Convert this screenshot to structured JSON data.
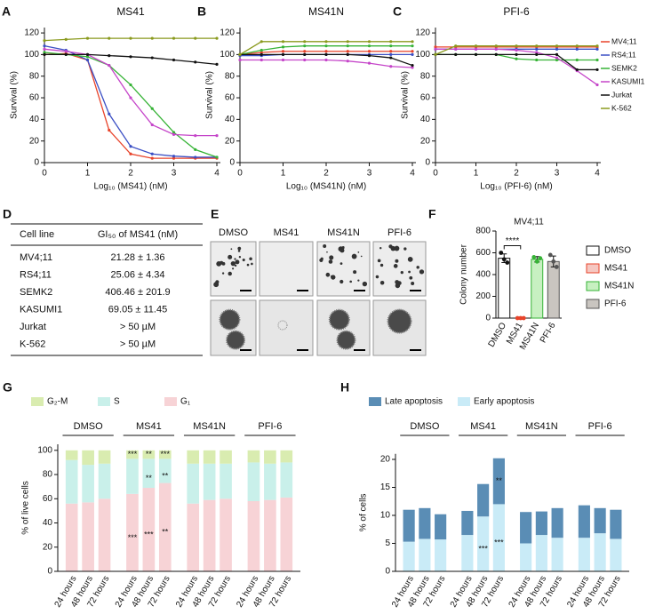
{
  "chart_data": [
    {
      "panel": "A",
      "type": "line",
      "title": "MS41",
      "xlabel": "Log₁₀ (MS41) (nM)",
      "ylabel": "Survival (%)",
      "x": [
        0,
        0.5,
        1,
        1.5,
        2,
        2.5,
        3,
        3.5,
        4
      ],
      "xlim": [
        0,
        4
      ],
      "xticks": [
        0,
        1,
        2,
        3,
        4
      ],
      "ylim": [
        0,
        125
      ],
      "yticks": [
        0,
        20,
        40,
        60,
        80,
        100,
        120
      ],
      "series": [
        {
          "name": "MV4;11",
          "color": "#e8432a",
          "values": [
            100,
            101,
            95,
            30,
            8,
            4,
            4,
            4,
            4
          ]
        },
        {
          "name": "RS4;11",
          "color": "#3b4fc4",
          "values": [
            108,
            104,
            95,
            45,
            15,
            8,
            6,
            5,
            5
          ]
        },
        {
          "name": "SEMK2",
          "color": "#36b336",
          "values": [
            102,
            100,
            98,
            90,
            72,
            50,
            28,
            12,
            5
          ]
        },
        {
          "name": "KASUMI1",
          "color": "#c545c9",
          "values": [
            105,
            103,
            100,
            90,
            60,
            35,
            26,
            25,
            25
          ]
        },
        {
          "name": "Jurkat",
          "color": "#111111",
          "values": [
            100,
            100,
            100,
            99,
            98,
            97,
            95,
            93,
            91
          ]
        },
        {
          "name": "K-562",
          "color": "#8a9a1e",
          "values": [
            113,
            114,
            115,
            115,
            115,
            115,
            115,
            115,
            115
          ]
        }
      ]
    },
    {
      "panel": "B",
      "type": "line",
      "title": "MS41N",
      "xlabel": "Log₁₀ (MS41N) (nM)",
      "ylabel": "Survival (%)",
      "x": [
        0,
        0.5,
        1,
        1.5,
        2,
        2.5,
        3,
        3.5,
        4
      ],
      "xlim": [
        0,
        4
      ],
      "xticks": [
        0,
        1,
        2,
        3,
        4
      ],
      "ylim": [
        0,
        125
      ],
      "yticks": [
        0,
        20,
        40,
        60,
        80,
        100,
        120
      ],
      "series": [
        {
          "name": "MV4;11",
          "color": "#e8432a",
          "values": [
            100,
            102,
            103,
            103,
            103,
            103,
            103,
            103,
            103
          ]
        },
        {
          "name": "RS4;11",
          "color": "#3b4fc4",
          "values": [
            99,
            99,
            100,
            100,
            100,
            100,
            100,
            100,
            100
          ]
        },
        {
          "name": "SEMK2",
          "color": "#36b336",
          "values": [
            100,
            104,
            107,
            108,
            108,
            108,
            108,
            108,
            108
          ]
        },
        {
          "name": "KASUMI1",
          "color": "#c545c9",
          "values": [
            95,
            95,
            95,
            95,
            95,
            94,
            92,
            89,
            88
          ]
        },
        {
          "name": "Jurkat",
          "color": "#111111",
          "values": [
            100,
            100,
            100,
            100,
            100,
            100,
            99,
            97,
            90
          ]
        },
        {
          "name": "K-562",
          "color": "#8a9a1e",
          "values": [
            100,
            112,
            112,
            112,
            112,
            112,
            112,
            112,
            112
          ]
        }
      ]
    },
    {
      "panel": "C",
      "type": "line",
      "title": "PFI-6",
      "xlabel": "Log₁₀ (PFI-6) (nM)",
      "ylabel": "Survival (%)",
      "legend": true,
      "x": [
        0,
        0.5,
        1,
        1.5,
        2,
        2.5,
        3,
        3.5,
        4
      ],
      "xlim": [
        0,
        4
      ],
      "xticks": [
        0,
        1,
        2,
        3,
        4
      ],
      "ylim": [
        0,
        125
      ],
      "yticks": [
        0,
        20,
        40,
        60,
        80,
        100,
        120
      ],
      "series": [
        {
          "name": "MV4;11",
          "color": "#e8432a",
          "values": [
            107,
            107,
            107,
            107,
            107,
            107,
            107,
            107,
            107
          ]
        },
        {
          "name": "RS4;11",
          "color": "#3b4fc4",
          "values": [
            105,
            105,
            105,
            105,
            105,
            105,
            105,
            105,
            105
          ]
        },
        {
          "name": "SEMK2",
          "color": "#36b336",
          "values": [
            100,
            100,
            100,
            100,
            96,
            95,
            95,
            95,
            95
          ]
        },
        {
          "name": "KASUMI1",
          "color": "#c545c9",
          "values": [
            105,
            105,
            105,
            105,
            104,
            102,
            97,
            85,
            72
          ]
        },
        {
          "name": "Jurkat",
          "color": "#111111",
          "values": [
            100,
            100,
            100,
            100,
            100,
            100,
            100,
            86,
            86
          ]
        },
        {
          "name": "K-562",
          "color": "#8a9a1e",
          "values": [
            100,
            108,
            108,
            108,
            108,
            108,
            108,
            108,
            108
          ]
        }
      ]
    },
    {
      "panel": "F",
      "type": "bar",
      "title": "MV4;11",
      "ylabel": "Colony number",
      "legend": true,
      "categories": [
        "DMSO",
        "MS41",
        "MS41N",
        "PFI-6"
      ],
      "values": [
        550,
        0,
        540,
        520
      ],
      "errors": [
        40,
        0,
        25,
        50
      ],
      "points": [
        [
          600,
          540,
          510
        ],
        [
          0,
          0,
          0
        ],
        [
          560,
          520,
          550
        ],
        [
          580,
          520,
          470
        ]
      ],
      "colors": [
        "#ffffff",
        "#f5c7c1",
        "#c7f0c1",
        "#c9c5c0"
      ],
      "edgecolors": [
        "#111111",
        "#e8432a",
        "#36b336",
        "#555555"
      ],
      "annotation": "****",
      "ylim": [
        0,
        800
      ],
      "yticks": [
        0,
        200,
        400,
        600,
        800
      ]
    },
    {
      "panel": "G",
      "type": "stacked_bar",
      "ylabel": "% of live cells",
      "groups": [
        "DMSO",
        "MS41",
        "MS41N",
        "PFI-6"
      ],
      "categories": [
        "24 hours",
        "48 hours",
        "72 hours",
        "24 hours",
        "48 hours",
        "72 hours",
        "24 hours",
        "48 hours",
        "72 hours",
        "24 hours",
        "48 hours",
        "72 hours"
      ],
      "ylim": [
        0,
        105
      ],
      "yticks": [
        0,
        20,
        40,
        60,
        80,
        100
      ],
      "series": [
        {
          "name": "G₁",
          "color": "#f7d3d6",
          "values": [
            56,
            57,
            60,
            64,
            69,
            73,
            56,
            59,
            60,
            58,
            59,
            61
          ],
          "significance": [
            null,
            null,
            null,
            "***",
            "***",
            "**",
            null,
            null,
            null,
            null,
            null,
            null
          ]
        },
        {
          "name": "S",
          "color": "#c9f0ea",
          "values": [
            36,
            31,
            29,
            29,
            24,
            20,
            33,
            30,
            29,
            32,
            30,
            29
          ],
          "significance": [
            null,
            null,
            null,
            null,
            "**",
            "**",
            null,
            null,
            null,
            null,
            null,
            null
          ]
        },
        {
          "name": "G₂-M",
          "color": "#d9ecb0",
          "values": [
            8,
            12,
            11,
            7,
            7,
            7,
            11,
            11,
            11,
            10,
            11,
            10
          ],
          "significance": [
            null,
            null,
            null,
            "***",
            "**",
            "***",
            null,
            null,
            null,
            null,
            null,
            null
          ]
        }
      ]
    },
    {
      "panel": "H",
      "type": "stacked_bar",
      "ylabel": "% of cells",
      "groups": [
        "DMSO",
        "MS41",
        "MS41N",
        "PFI-6"
      ],
      "categories": [
        "24 hours",
        "48 hours",
        "72 hours",
        "24 hours",
        "48 hours",
        "72 hours",
        "24 hours",
        "48 hours",
        "72 hours",
        "24 hours",
        "48 hours",
        "72 hours"
      ],
      "ylim": [
        0,
        21
      ],
      "yticks": [
        0,
        5,
        10,
        15,
        20
      ],
      "series": [
        {
          "name": "Early apoptosis",
          "color": "#c9ebf7",
          "values": [
            5.3,
            5.8,
            5.7,
            6.5,
            9.8,
            12,
            5,
            6.5,
            6,
            6,
            6.8,
            5.8
          ],
          "significance": [
            null,
            null,
            null,
            null,
            "***",
            "***",
            null,
            null,
            null,
            null,
            null,
            null
          ]
        },
        {
          "name": "Late apoptosis",
          "color": "#5a8db5",
          "values": [
            5.7,
            5.5,
            4.5,
            4.3,
            5.8,
            8.2,
            5.6,
            4.2,
            5.3,
            5.8,
            4.5,
            5.2
          ],
          "significance": [
            null,
            null,
            null,
            null,
            null,
            "**",
            null,
            null,
            null,
            null,
            null,
            null
          ]
        }
      ]
    }
  ],
  "table": {
    "panel": "D",
    "header": [
      "Cell line",
      "GI₅₀ of MS41 (nM)"
    ],
    "rows": [
      [
        "MV4;11",
        "21.28 ± 1.36"
      ],
      [
        "RS4;11",
        "25.06 ± 4.34"
      ],
      [
        "SEMK2",
        "406.46 ± 201.9"
      ],
      [
        "KASUMI1",
        "69.05 ± 11.45"
      ],
      [
        "Jurkat",
        "> 50 µM"
      ],
      [
        "K-562",
        "> 50 µM"
      ]
    ]
  },
  "images": {
    "panel": "E",
    "columns": [
      "DMSO",
      "MS41",
      "MS41N",
      "PFI-6"
    ]
  }
}
